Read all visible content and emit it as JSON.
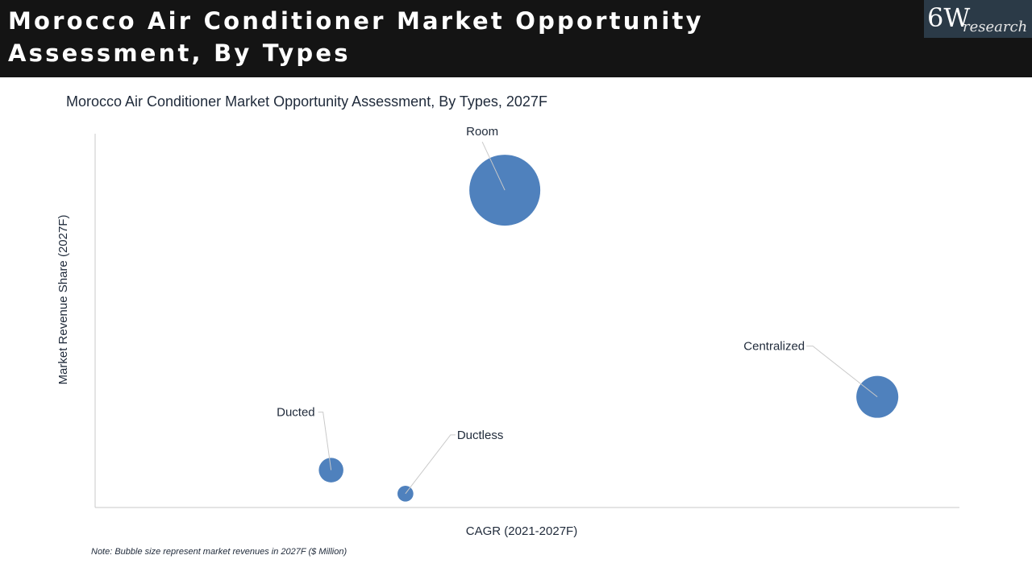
{
  "header": {
    "title_line1": "Morocco Air Conditioner Market Opportunity",
    "title_line2": "Assessment, By Types"
  },
  "logo": {
    "main": "6W",
    "sub": "research"
  },
  "note": "Note: Bubble size represent market revenues in 2027F ($ Million)",
  "colors": {
    "bubble": "#4f81bd",
    "header_bg": "#141414",
    "axis": "#c8c8c8"
  },
  "chart_data": {
    "type": "scatter",
    "title": "Morocco Air Conditioner Market Opportunity Assessment, By Types, 2027F",
    "xlabel": "CAGR (2021-2027F)",
    "ylabel": "Market Revenue Share (2027F)",
    "grid": false,
    "axis_ticks_shown": false,
    "xlim": [
      0,
      100
    ],
    "ylim": [
      0,
      100
    ],
    "series": [
      {
        "points": [
          {
            "label": "Room",
            "x": 47.4,
            "y": 84.9,
            "size": 100
          },
          {
            "label": "Centralized",
            "x": 90.5,
            "y": 29.6,
            "size": 35
          },
          {
            "label": "Ducted",
            "x": 27.3,
            "y": 10.0,
            "size": 12
          },
          {
            "label": "Ductless",
            "x": 35.9,
            "y": 3.7,
            "size": 5
          }
        ]
      }
    ]
  }
}
